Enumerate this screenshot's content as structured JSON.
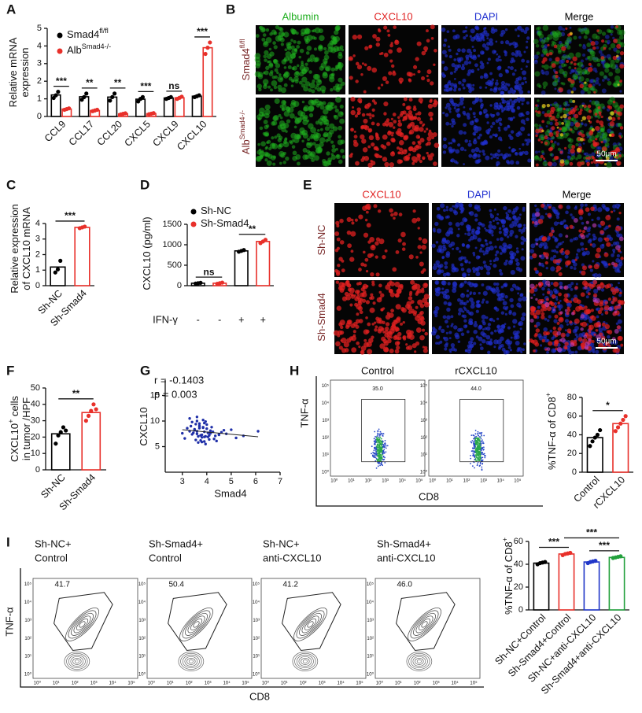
{
  "panel_labels": [
    "A",
    "B",
    "C",
    "D",
    "E",
    "F",
    "G",
    "H",
    "I"
  ],
  "chart_data": [
    {
      "type": "bar",
      "ylabel": [
        [
          "Relative mRNA"
        ],
        [
          "expression"
        ]
      ],
      "categories": [
        "CCL9",
        "CCL17",
        "CCL20",
        "CXCL5",
        "CXCL9",
        "CXCL10"
      ],
      "series": [
        {
          "name": [
            "Smad4",
            {
              "sup": "fl/fl"
            }
          ],
          "color": "#000000",
          "values": [
            1.22,
            1.12,
            1.1,
            0.98,
            1.05,
            1.15
          ],
          "points": [
            [
              1.05,
              1.2,
              1.4
            ],
            [
              0.95,
              1.1,
              1.3
            ],
            [
              0.9,
              1.1,
              1.3
            ],
            [
              0.85,
              1.0,
              1.1
            ],
            [
              1.0,
              1.05,
              1.1
            ],
            [
              1.1,
              1.15,
              1.2
            ]
          ]
        },
        {
          "name": [
            "Alb",
            {
              "sup": "Smad4-/-"
            }
          ],
          "color": "#e8302a",
          "values": [
            0.42,
            0.34,
            0.15,
            0.16,
            1.06,
            3.9
          ],
          "points": [
            [
              0.38,
              0.42,
              0.46
            ],
            [
              0.3,
              0.34,
              0.38
            ],
            [
              0.12,
              0.15,
              0.18
            ],
            [
              0.13,
              0.16,
              0.19
            ],
            [
              1.0,
              1.06,
              1.12
            ],
            [
              3.55,
              3.9,
              4.2
            ]
          ]
        }
      ],
      "ylim": [
        0,
        5
      ],
      "yticks": [
        0,
        1,
        2,
        3,
        4,
        5
      ],
      "significance": [
        "***",
        "**",
        "**",
        "***",
        "ns",
        "***"
      ]
    },
    {
      "type": "bar",
      "ylabel": [
        [
          "Relative expression"
        ],
        [
          "of CXCL10 mRNA"
        ]
      ],
      "categories": [
        "Sh-NC",
        "Sh-Smad4"
      ],
      "values": [
        1.2,
        3.75
      ],
      "colors": [
        "#000000",
        "#e8302a"
      ],
      "points": [
        [
          0.85,
          1.05,
          1.6
        ],
        [
          3.7,
          3.75,
          3.8
        ]
      ],
      "ylim": [
        0,
        4
      ],
      "yticks": [
        0,
        1,
        2,
        3,
        4
      ],
      "significance": [
        "***"
      ]
    },
    {
      "type": "bar",
      "ylabel": [
        [
          "CXCL10 (pg/ml)"
        ]
      ],
      "category_title": "IFN-γ",
      "categories": [
        "-",
        "-",
        "+",
        "+"
      ],
      "series": [
        {
          "name": [
            "Sh-NC"
          ],
          "color": "#000000",
          "values": [
            60,
            null,
            850,
            null
          ],
          "points": [
            [
              50,
              60,
              70
            ],
            null,
            [
              830,
              850,
              870
            ],
            null
          ]
        },
        {
          "name": [
            "Sh-Smad4"
          ],
          "color": "#e8302a",
          "values": [
            null,
            60,
            null,
            1080
          ],
          "points": [
            null,
            [
              45,
              60,
              75
            ],
            null,
            [
              1040,
              1080,
              1120
            ]
          ]
        }
      ],
      "ylim": [
        0,
        1500
      ],
      "yticks": [
        0,
        500,
        1000,
        1500
      ],
      "significance": [
        "ns",
        "**"
      ]
    },
    {
      "type": "bar",
      "ylabel": [
        [
          "CXCL10",
          {
            "sup": "+"
          },
          " cells"
        ],
        [
          "in tumor /HPF"
        ]
      ],
      "categories": [
        "Sh-NC",
        "Sh-Smad4"
      ],
      "values": [
        22,
        35
      ],
      "colors": [
        "#000000",
        "#e8302a"
      ],
      "points": [
        [
          16,
          21,
          23,
          26,
          24
        ],
        [
          30,
          33,
          36,
          40,
          37
        ]
      ],
      "ylim": [
        0,
        50
      ],
      "yticks": [
        0,
        10,
        20,
        30,
        40,
        50
      ],
      "significance": [
        "**"
      ]
    },
    {
      "type": "scatter",
      "xlabel": "Smad4",
      "ylabel": [
        [
          "CXCL10"
        ]
      ],
      "annotations": [
        "r = -0.1403",
        "p = 0.003"
      ],
      "color": "#1f2fa8",
      "x": [
        3.5,
        3.6,
        3.7,
        3.8,
        3.9,
        4.0,
        4.1,
        3.4,
        3.3,
        3.75,
        3.85,
        3.95,
        4.2,
        4.3,
        4.5,
        3.2,
        3.65,
        3.55,
        3.45,
        4.05,
        4.15,
        3.9,
        3.8,
        3.7,
        4.4,
        4.6,
        5.0,
        5.5,
        6.1,
        3.0,
        3.1,
        3.35,
        3.6,
        3.95,
        4.25,
        3.85,
        3.75,
        4.1,
        3.5,
        3.65,
        4.0,
        3.9,
        4.8,
        3.3,
        3.7,
        4.35,
        3.8,
        3.6,
        4.05,
        3.95,
        5.2,
        4.7,
        3.4,
        3.55,
        3.85,
        4.15,
        3.7,
        3.9,
        4.5,
        3.6
      ],
      "y": [
        8.2,
        7.5,
        9.1,
        6.8,
        7.9,
        8.5,
        7.2,
        9.8,
        8.0,
        6.2,
        10.2,
        7.0,
        8.8,
        6.5,
        7.4,
        8.6,
        5.8,
        9.4,
        7.7,
        6.9,
        8.1,
        9.6,
        7.3,
        8.9,
        6.1,
        7.8,
        8.3,
        7.1,
        8.0,
        7.6,
        6.6,
        9.0,
        10.8,
        5.5,
        7.9,
        8.7,
        7.2,
        6.4,
        8.4,
        7.0,
        9.3,
        6.0,
        7.5,
        10.5,
        8.6,
        7.1,
        5.9,
        8.0,
        7.7,
        9.9,
        6.7,
        8.2,
        7.4,
        6.3,
        8.8,
        7.6,
        9.5,
        6.9,
        7.3,
        10.0
      ],
      "xlim": [
        2.3,
        7
      ],
      "ylim": [
        0,
        18
      ],
      "xticks": [
        3,
        4,
        5,
        6,
        7
      ],
      "yticks": [
        5,
        10,
        15
      ]
    },
    {
      "type": "bar",
      "ylabel": [
        [
          "%TNF-α of CD8",
          {
            "sup": "+"
          }
        ]
      ],
      "categories": [
        "Control",
        "rCXCL10"
      ],
      "values": [
        37,
        52
      ],
      "colors": [
        "#000000",
        "#e8302a"
      ],
      "points": [
        [
          28,
          33,
          37,
          40,
          45
        ],
        [
          44,
          48,
          52,
          56,
          60
        ]
      ],
      "ylim": [
        0,
        80
      ],
      "yticks": [
        0,
        20,
        40,
        60,
        80
      ],
      "significance": [
        "*"
      ]
    },
    {
      "type": "bar",
      "ylabel": [
        [
          "%TNF-α of CD8",
          {
            "sup": "+"
          }
        ]
      ],
      "categories": [
        "Sh-NC+Control",
        "Sh-Smad4+Control",
        "Sh-NC+anti-CXCL10",
        "Sh-Smad4+anti-CXCL10"
      ],
      "values": [
        41,
        49,
        42,
        46
      ],
      "colors": [
        "#000000",
        "#e8302a",
        "#2036c8",
        "#22a03c"
      ],
      "points": [
        [
          40,
          41,
          41.5,
          42
        ],
        [
          48,
          49,
          49.5,
          50
        ],
        [
          41,
          42,
          42.5,
          43
        ],
        [
          45.5,
          46,
          46.5,
          47
        ]
      ],
      "ylim": [
        0,
        60
      ],
      "yticks": [
        0,
        20,
        40,
        60
      ],
      "significance": [
        "***",
        "***",
        "***"
      ]
    }
  ],
  "figure_b": {
    "channels": [
      "Albumin",
      "CXCL10",
      "DAPI",
      "Merge"
    ],
    "channel_colors": [
      "#1fae1f",
      "#e02020",
      "#2030d0",
      "#000000"
    ],
    "rows": [
      [
        "Smad4",
        {
          "sup": "fl/fl"
        }
      ],
      [
        "Alb",
        {
          "sup": "Smad4-/-"
        }
      ]
    ],
    "scale_bar": "50μm"
  },
  "figure_e": {
    "channels": [
      "CXCL10",
      "DAPI",
      "Merge"
    ],
    "channel_colors": [
      "#e02020",
      "#2030d0",
      "#000000"
    ],
    "rows": [
      [
        "Sh-NC"
      ],
      [
        "Sh-Smad4"
      ]
    ],
    "scale_bar": "50μm"
  },
  "flow_h": {
    "y_label": "TNF-α",
    "x_label": "CD8",
    "plots": [
      {
        "title": [
          "Control"
        ],
        "gate": "35.0"
      },
      {
        "title": [
          "rCXCL10"
        ],
        "gate": "44.0"
      }
    ]
  },
  "flow_i": {
    "y_label": "TNF-α",
    "x_label": "CD8",
    "plots": [
      {
        "title": [
          "Sh-NC+",
          "Control"
        ],
        "gate": "41.7"
      },
      {
        "title": [
          "Sh-Smad4+",
          "Control"
        ],
        "gate": "50.4"
      },
      {
        "title": [
          "Sh-NC+",
          "anti-CXCL10"
        ],
        "gate": "41.2"
      },
      {
        "title": [
          "Sh-Smad4+",
          "anti-CXCL10"
        ],
        "gate": "46.0"
      }
    ]
  },
  "flow_axis_ticks": [
    "10⁰",
    "10¹",
    "10²",
    "10³",
    "10⁴",
    "10⁵"
  ]
}
